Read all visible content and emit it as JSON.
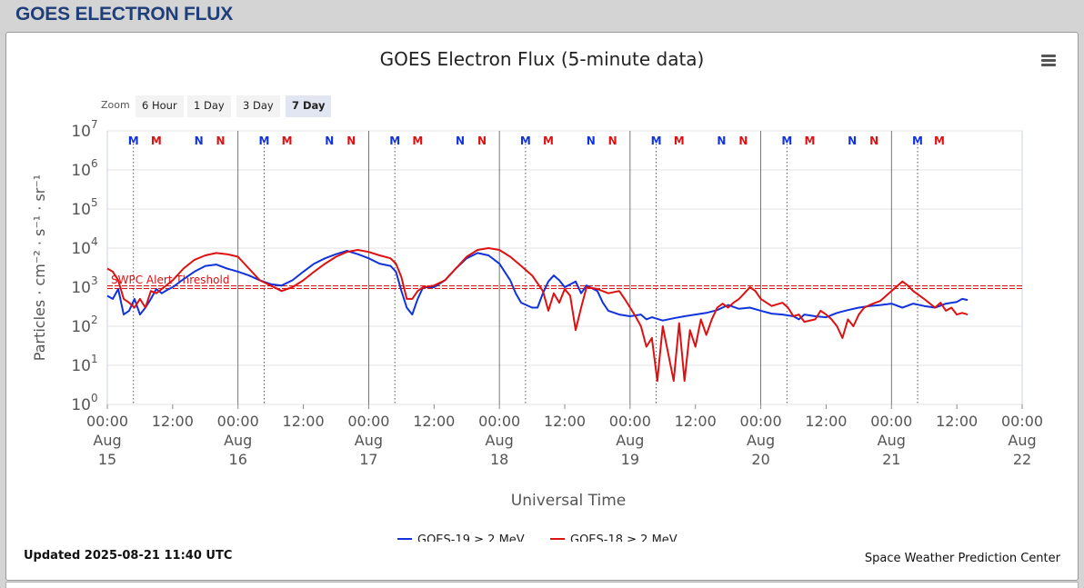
{
  "page": {
    "title": "GOES ELECTRON FLUX"
  },
  "zoom": {
    "label": "Zoom",
    "buttons": [
      "6 Hour",
      "1 Day",
      "3 Day",
      "7 Day"
    ],
    "active": "7 Day"
  },
  "footer": {
    "updated": "Updated 2025-08-21 11:40 UTC",
    "credit": "Space Weather Prediction Center"
  },
  "chart_data": {
    "type": "line",
    "title": "GOES Electron Flux (5-minute data)",
    "xlabel": "Universal Time",
    "ylabel": "Particles · cm⁻² · s⁻¹ · sr⁻¹",
    "y_scale": "log",
    "ylim": [
      1,
      10000000
    ],
    "xlim_hours": [
      0,
      168
    ],
    "y_ticks": [
      {
        "value": 1,
        "base": "10",
        "exp": "0"
      },
      {
        "value": 10,
        "base": "10",
        "exp": "1"
      },
      {
        "value": 100,
        "base": "10",
        "exp": "2"
      },
      {
        "value": 1000,
        "base": "10",
        "exp": "3"
      },
      {
        "value": 10000,
        "base": "10",
        "exp": "4"
      },
      {
        "value": 100000,
        "base": "10",
        "exp": "5"
      },
      {
        "value": 1000000,
        "base": "10",
        "exp": "6"
      },
      {
        "value": 10000000,
        "base": "10",
        "exp": "7"
      }
    ],
    "x_ticks": [
      {
        "hour": 0,
        "lines": [
          "00:00",
          "Aug",
          "15"
        ]
      },
      {
        "hour": 12,
        "lines": [
          "12:00"
        ]
      },
      {
        "hour": 24,
        "lines": [
          "00:00",
          "Aug",
          "16"
        ]
      },
      {
        "hour": 36,
        "lines": [
          "12:00"
        ]
      },
      {
        "hour": 48,
        "lines": [
          "00:00",
          "Aug",
          "17"
        ]
      },
      {
        "hour": 60,
        "lines": [
          "12:00"
        ]
      },
      {
        "hour": 72,
        "lines": [
          "00:00",
          "Aug",
          "18"
        ]
      },
      {
        "hour": 84,
        "lines": [
          "12:00"
        ]
      },
      {
        "hour": 96,
        "lines": [
          "00:00",
          "Aug",
          "19"
        ]
      },
      {
        "hour": 108,
        "lines": [
          "12:00"
        ]
      },
      {
        "hour": 120,
        "lines": [
          "00:00",
          "Aug",
          "20"
        ]
      },
      {
        "hour": 132,
        "lines": [
          "12:00"
        ]
      },
      {
        "hour": 144,
        "lines": [
          "00:00",
          "Aug",
          "21"
        ]
      },
      {
        "hour": 156,
        "lines": [
          "12:00"
        ]
      },
      {
        "hour": 168,
        "lines": [
          "00:00",
          "Aug",
          "22"
        ]
      }
    ],
    "threshold": {
      "label": "SWPC Alert Threshold",
      "value": 1000,
      "color": "#dd1111"
    },
    "markers": [
      {
        "hour": 4.8,
        "label": "M",
        "color": "#1133dd"
      },
      {
        "hour": 9.0,
        "label": "M",
        "color": "#dd1111"
      },
      {
        "hour": 16.8,
        "label": "N",
        "color": "#1133dd"
      },
      {
        "hour": 20.8,
        "label": "N",
        "color": "#dd1111"
      },
      {
        "hour": 28.8,
        "label": "M",
        "color": "#1133dd"
      },
      {
        "hour": 33.0,
        "label": "M",
        "color": "#dd1111"
      },
      {
        "hour": 40.8,
        "label": "N",
        "color": "#1133dd"
      },
      {
        "hour": 44.8,
        "label": "N",
        "color": "#dd1111"
      },
      {
        "hour": 52.8,
        "label": "M",
        "color": "#1133dd"
      },
      {
        "hour": 57.0,
        "label": "M",
        "color": "#dd1111"
      },
      {
        "hour": 64.8,
        "label": "N",
        "color": "#1133dd"
      },
      {
        "hour": 68.8,
        "label": "N",
        "color": "#dd1111"
      },
      {
        "hour": 76.8,
        "label": "M",
        "color": "#1133dd"
      },
      {
        "hour": 81.0,
        "label": "M",
        "color": "#dd1111"
      },
      {
        "hour": 88.8,
        "label": "N",
        "color": "#1133dd"
      },
      {
        "hour": 92.8,
        "label": "N",
        "color": "#dd1111"
      },
      {
        "hour": 100.8,
        "label": "M",
        "color": "#1133dd"
      },
      {
        "hour": 105.0,
        "label": "M",
        "color": "#dd1111"
      },
      {
        "hour": 112.8,
        "label": "N",
        "color": "#1133dd"
      },
      {
        "hour": 116.8,
        "label": "N",
        "color": "#dd1111"
      },
      {
        "hour": 124.8,
        "label": "M",
        "color": "#1133dd"
      },
      {
        "hour": 129.0,
        "label": "M",
        "color": "#dd1111"
      },
      {
        "hour": 136.8,
        "label": "N",
        "color": "#1133dd"
      },
      {
        "hour": 140.8,
        "label": "N",
        "color": "#dd1111"
      },
      {
        "hour": 148.8,
        "label": "M",
        "color": "#1133dd"
      },
      {
        "hour": 152.8,
        "label": "M",
        "color": "#dd1111"
      }
    ],
    "series": [
      {
        "name": "GOES-19 ≥ 2 MeV",
        "color": "#1133dd",
        "points": [
          [
            0,
            600
          ],
          [
            1,
            500
          ],
          [
            2,
            900
          ],
          [
            3,
            200
          ],
          [
            4,
            250
          ],
          [
            5,
            500
          ],
          [
            6,
            200
          ],
          [
            7,
            300
          ],
          [
            8,
            500
          ],
          [
            9,
            900
          ],
          [
            10,
            700
          ],
          [
            11,
            850
          ],
          [
            12,
            1000
          ],
          [
            14,
            1600
          ],
          [
            16,
            2500
          ],
          [
            18,
            3500
          ],
          [
            20,
            3800
          ],
          [
            22,
            3000
          ],
          [
            24,
            2500
          ],
          [
            26,
            2000
          ],
          [
            28,
            1500
          ],
          [
            30,
            1200
          ],
          [
            32,
            1100
          ],
          [
            34,
            1500
          ],
          [
            36,
            2500
          ],
          [
            38,
            4000
          ],
          [
            40,
            5500
          ],
          [
            42,
            7000
          ],
          [
            44,
            8500
          ],
          [
            46,
            7000
          ],
          [
            48,
            5500
          ],
          [
            50,
            4000
          ],
          [
            52,
            3500
          ],
          [
            53,
            2500
          ],
          [
            54,
            800
          ],
          [
            55,
            300
          ],
          [
            56,
            200
          ],
          [
            57,
            500
          ],
          [
            58,
            1000
          ],
          [
            60,
            1000
          ],
          [
            62,
            1500
          ],
          [
            64,
            3000
          ],
          [
            66,
            5500
          ],
          [
            68,
            7500
          ],
          [
            70,
            6500
          ],
          [
            72,
            4000
          ],
          [
            74,
            1500
          ],
          [
            75,
            700
          ],
          [
            76,
            400
          ],
          [
            78,
            300
          ],
          [
            79,
            300
          ],
          [
            80,
            700
          ],
          [
            81,
            1400
          ],
          [
            82,
            2000
          ],
          [
            83,
            1500
          ],
          [
            84,
            1000
          ],
          [
            86,
            1400
          ],
          [
            87,
            700
          ],
          [
            88,
            1100
          ],
          [
            90,
            800
          ],
          [
            91,
            400
          ],
          [
            92,
            250
          ],
          [
            94,
            200
          ],
          [
            96,
            180
          ],
          [
            98,
            200
          ],
          [
            99,
            150
          ],
          [
            100,
            170
          ],
          [
            102,
            140
          ],
          [
            104,
            160
          ],
          [
            106,
            180
          ],
          [
            108,
            200
          ],
          [
            110,
            220
          ],
          [
            112,
            260
          ],
          [
            114,
            350
          ],
          [
            116,
            280
          ],
          [
            118,
            300
          ],
          [
            120,
            250
          ],
          [
            122,
            210
          ],
          [
            124,
            200
          ],
          [
            126,
            180
          ],
          [
            127,
            150
          ],
          [
            128,
            200
          ],
          [
            130,
            180
          ],
          [
            132,
            170
          ],
          [
            134,
            220
          ],
          [
            136,
            260
          ],
          [
            138,
            300
          ],
          [
            140,
            330
          ],
          [
            142,
            350
          ],
          [
            144,
            380
          ],
          [
            146,
            300
          ],
          [
            148,
            380
          ],
          [
            150,
            330
          ],
          [
            152,
            300
          ],
          [
            154,
            380
          ],
          [
            156,
            420
          ],
          [
            157,
            500
          ],
          [
            158,
            470
          ]
        ]
      },
      {
        "name": "GOES-18 ≥ 2 MeV",
        "color": "#dd1111",
        "points": [
          [
            0,
            3000
          ],
          [
            1,
            2500
          ],
          [
            2,
            1500
          ],
          [
            3,
            500
          ],
          [
            4,
            400
          ],
          [
            5,
            300
          ],
          [
            6,
            500
          ],
          [
            7,
            300
          ],
          [
            8,
            800
          ],
          [
            9,
            700
          ],
          [
            10,
            900
          ],
          [
            12,
            1500
          ],
          [
            14,
            3000
          ],
          [
            16,
            5000
          ],
          [
            18,
            6500
          ],
          [
            20,
            7500
          ],
          [
            22,
            7000
          ],
          [
            24,
            6000
          ],
          [
            26,
            3000
          ],
          [
            28,
            1500
          ],
          [
            30,
            1100
          ],
          [
            32,
            800
          ],
          [
            34,
            1000
          ],
          [
            36,
            1500
          ],
          [
            38,
            2500
          ],
          [
            40,
            4000
          ],
          [
            42,
            6000
          ],
          [
            44,
            8000
          ],
          [
            46,
            9000
          ],
          [
            48,
            8000
          ],
          [
            50,
            6500
          ],
          [
            52,
            5500
          ],
          [
            53,
            4000
          ],
          [
            54,
            1800
          ],
          [
            55,
            500
          ],
          [
            56,
            500
          ],
          [
            57,
            800
          ],
          [
            58,
            1000
          ],
          [
            60,
            1100
          ],
          [
            62,
            1500
          ],
          [
            64,
            3000
          ],
          [
            66,
            6000
          ],
          [
            68,
            9000
          ],
          [
            70,
            10000
          ],
          [
            72,
            9000
          ],
          [
            74,
            6000
          ],
          [
            76,
            3500
          ],
          [
            78,
            2000
          ],
          [
            80,
            800
          ],
          [
            81,
            250
          ],
          [
            82,
            700
          ],
          [
            83,
            400
          ],
          [
            84,
            900
          ],
          [
            85,
            600
          ],
          [
            86,
            80
          ],
          [
            87,
            300
          ],
          [
            88,
            1000
          ],
          [
            90,
            900
          ],
          [
            92,
            700
          ],
          [
            94,
            800
          ],
          [
            95,
            500
          ],
          [
            96,
            300
          ],
          [
            97,
            180
          ],
          [
            98,
            100
          ],
          [
            99,
            30
          ],
          [
            100,
            50
          ],
          [
            101,
            4
          ],
          [
            102,
            100
          ],
          [
            103,
            20
          ],
          [
            104,
            4
          ],
          [
            105,
            120
          ],
          [
            106,
            4
          ],
          [
            107,
            80
          ],
          [
            108,
            30
          ],
          [
            109,
            150
          ],
          [
            110,
            60
          ],
          [
            111,
            150
          ],
          [
            112,
            300
          ],
          [
            113,
            380
          ],
          [
            114,
            300
          ],
          [
            115,
            400
          ],
          [
            116,
            500
          ],
          [
            117,
            700
          ],
          [
            118,
            1000
          ],
          [
            119,
            800
          ],
          [
            120,
            500
          ],
          [
            122,
            330
          ],
          [
            124,
            400
          ],
          [
            125,
            300
          ],
          [
            126,
            180
          ],
          [
            127,
            200
          ],
          [
            128,
            130
          ],
          [
            130,
            150
          ],
          [
            131,
            250
          ],
          [
            132,
            200
          ],
          [
            133,
            150
          ],
          [
            134,
            100
          ],
          [
            135,
            50
          ],
          [
            136,
            150
          ],
          [
            137,
            100
          ],
          [
            138,
            200
          ],
          [
            139,
            300
          ],
          [
            140,
            350
          ],
          [
            142,
            450
          ],
          [
            144,
            800
          ],
          [
            146,
            1400
          ],
          [
            147,
            1100
          ],
          [
            148,
            800
          ],
          [
            150,
            500
          ],
          [
            152,
            300
          ],
          [
            153,
            400
          ],
          [
            154,
            250
          ],
          [
            155,
            300
          ],
          [
            156,
            200
          ],
          [
            157,
            220
          ],
          [
            158,
            200
          ]
        ]
      }
    ]
  }
}
